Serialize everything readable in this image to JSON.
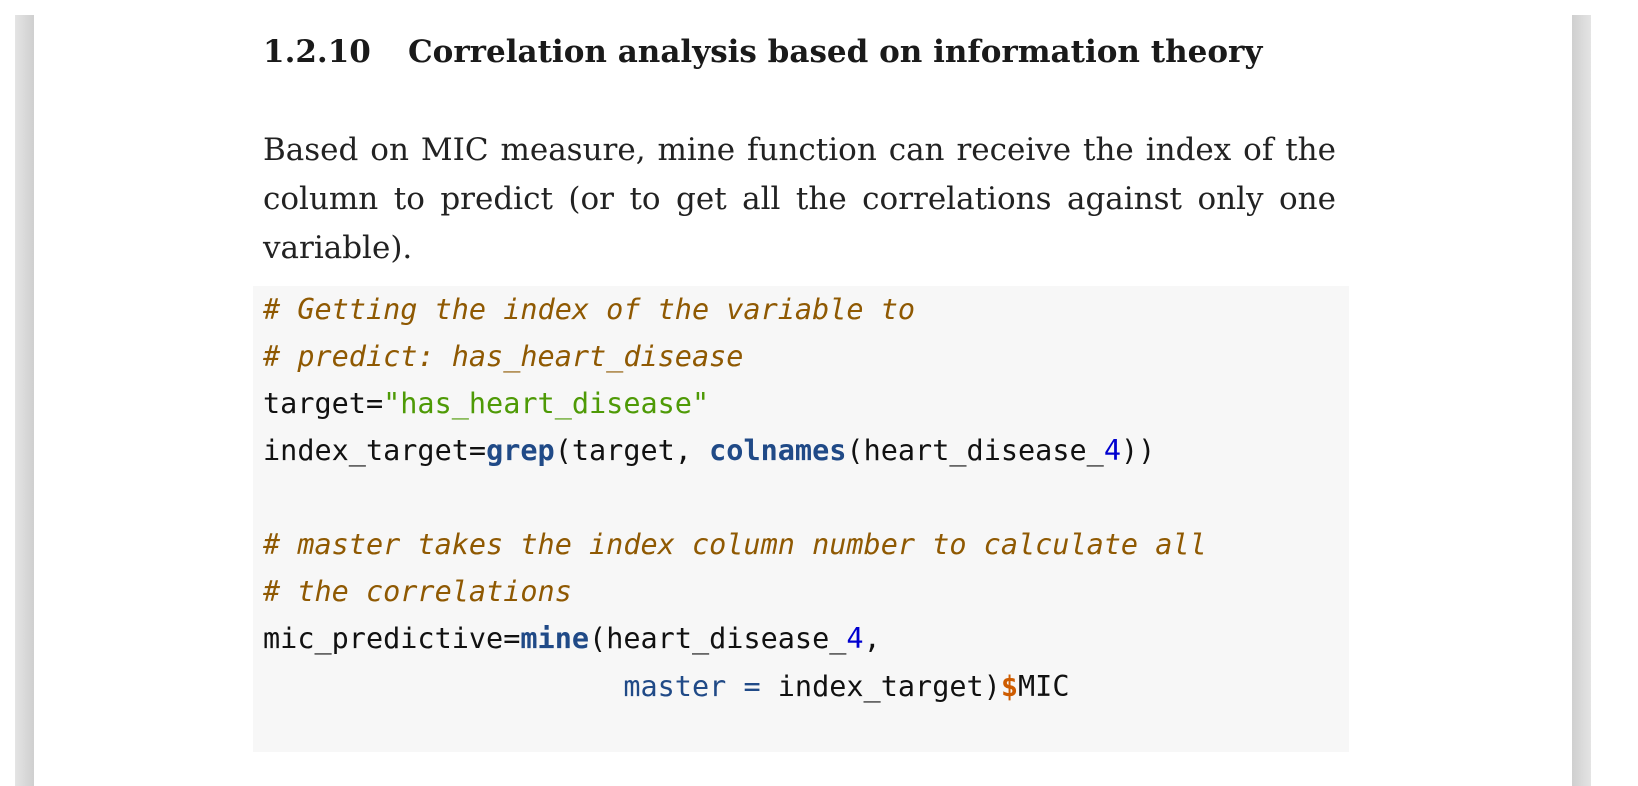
{
  "section": {
    "number": "1.2.10",
    "title": "Correlation analysis based on information theory"
  },
  "paragraph": {
    "lines": [
      "Based on MIC measure, mine function can receive the index of the",
      "column to predict (or to get all the correlations against only one",
      "variable)."
    ]
  },
  "code": {
    "comment_1": "# Getting the index of the variable to",
    "comment_2": "# predict: has_heart_disease",
    "line_3": {
      "var": "target=",
      "string": "\"has_heart_disease\""
    },
    "line_4": {
      "var": "index_target=",
      "fn_grep": "grep",
      "mid": "(target, ",
      "fn_colnames": "colnames",
      "arg_open": "(heart_disease_",
      "num": "4",
      "close": "))"
    },
    "comment_5": "# master takes the index column number to calculate all",
    "comment_6": "# the correlations",
    "line_7": {
      "var": "mic_predictive=",
      "fn_mine": "mine",
      "arg_open": "(heart_disease_",
      "num": "4",
      "close": ","
    },
    "line_8": {
      "indent": "                     ",
      "attr": "master",
      "eq": " = ",
      "arg": "index_target)",
      "dollar": "$",
      "field": "MIC"
    }
  }
}
